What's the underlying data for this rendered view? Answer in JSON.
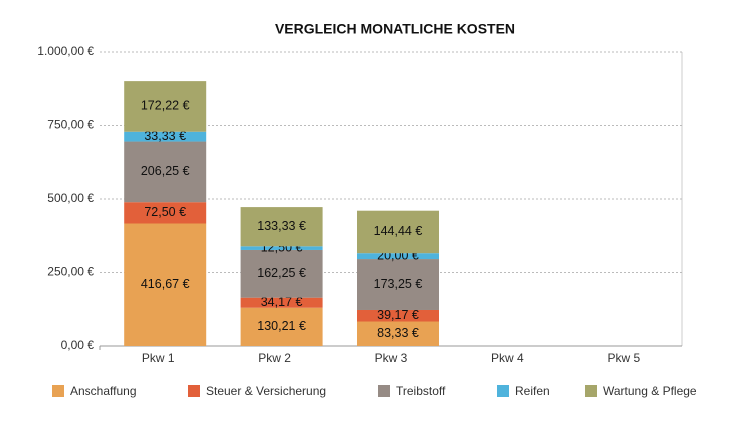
{
  "chart_data": {
    "type": "stacked_bar",
    "title": "VERGLEICH MONATLICHE KOSTEN",
    "categories": [
      "Pkw 1",
      "Pkw 2",
      "Pkw 3",
      "Pkw 4",
      "Pkw 5"
    ],
    "series": [
      {
        "name": "Anschaffung",
        "color": "#e8a253",
        "values": [
          416.67,
          130.21,
          83.33,
          null,
          null
        ],
        "value_labels": [
          "416,67 €",
          "130,21 €",
          "83,33 €",
          null,
          null
        ]
      },
      {
        "name": "Steuer & Versicherung",
        "color": "#e2603a",
        "values": [
          72.5,
          34.17,
          39.17,
          null,
          null
        ],
        "value_labels": [
          "72,50 €",
          "34,17 €",
          "39,17 €",
          null,
          null
        ]
      },
      {
        "name": "Treibstoff",
        "color": "#968b85",
        "values": [
          206.25,
          162.25,
          173.25,
          null,
          null
        ],
        "value_labels": [
          "206,25 €",
          "162,25 €",
          "173,25 €",
          null,
          null
        ]
      },
      {
        "name": "Reifen",
        "color": "#4fb3dc",
        "values": [
          33.33,
          12.5,
          20.0,
          null,
          null
        ],
        "value_labels": [
          "33,33 €",
          "12,50 €",
          "20,00 €",
          null,
          null
        ]
      },
      {
        "name": "Wartung & Pflege",
        "color": "#a6a66a",
        "values": [
          172.22,
          133.33,
          144.44,
          null,
          null
        ],
        "value_labels": [
          "172,22 €",
          "133,33 €",
          "144,44 €",
          null,
          null
        ]
      }
    ],
    "ylim": [
      0,
      1000
    ],
    "yticks": [
      {
        "value": 0,
        "label": "0,00 €"
      },
      {
        "value": 250,
        "label": "250,00 €"
      },
      {
        "value": 500,
        "label": "500,00 €"
      },
      {
        "value": 750,
        "label": "750,00 €"
      },
      {
        "value": 1000,
        "label": "1.000,00 €"
      }
    ],
    "grid": true,
    "legend": "bottom"
  }
}
